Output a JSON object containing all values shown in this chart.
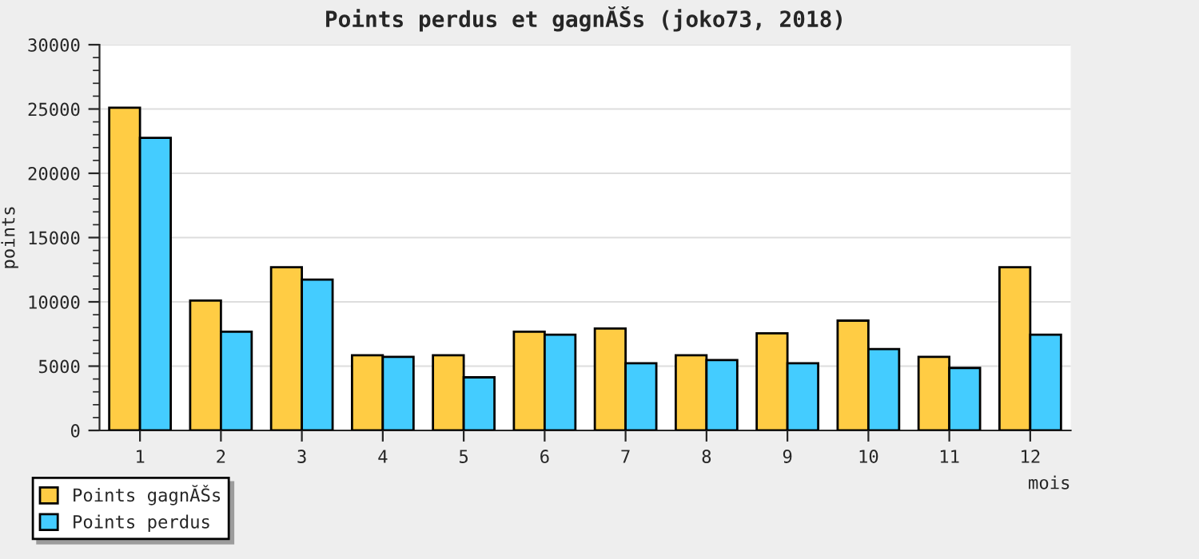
{
  "chart_data": {
    "type": "bar",
    "title": "Points perdus et gagnĂŠs (joko73, 2018)",
    "xlabel": "mois",
    "ylabel": "points",
    "categories": [
      "1",
      "2",
      "3",
      "4",
      "5",
      "6",
      "7",
      "8",
      "9",
      "10",
      "11",
      "12"
    ],
    "series": [
      {
        "name": "Points gagnĂŠs",
        "color": "#ffcc44",
        "values": [
          25100,
          10100,
          12700,
          5840,
          5840,
          7680,
          7930,
          5840,
          7560,
          8540,
          5720,
          12700
        ]
      },
      {
        "name": "Points perdus",
        "color": "#44ccff",
        "values": [
          22760,
          7680,
          11730,
          5720,
          4130,
          7440,
          5230,
          5480,
          5230,
          6330,
          4860,
          7440
        ]
      }
    ],
    "ylim": [
      0,
      30000
    ],
    "yticks": [
      0,
      5000,
      10000,
      15000,
      20000,
      25000,
      30000
    ],
    "grid": "y",
    "legend": "bottom left"
  }
}
